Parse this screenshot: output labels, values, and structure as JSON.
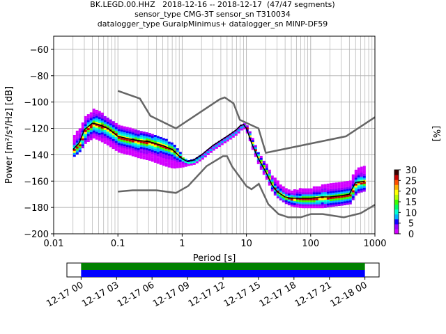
{
  "titles": {
    "line1": "BK.LEGD.00.HHZ   2018-12-16 -- 2018-12-17  (47/47 segments)",
    "line2": "sensor_type CMG-3T sensor_sn T310034",
    "line3": "datalogger_type GuralpMinimus+ datalogger_sn MINP-DF59"
  },
  "chart_data": [
    {
      "type": "heatmap",
      "xlabel": "Period [s]",
      "ylabel": "Power [m²/s⁴/Hz] [dB]",
      "xscale": "log",
      "xlim": [
        0.01,
        1000
      ],
      "ylim": [
        -200,
        -50
      ],
      "xticks": [
        "0.01",
        "0.1",
        "1",
        "10",
        "100",
        "1000"
      ],
      "yticks": [
        "−60",
        "−80",
        "−100",
        "−120",
        "−140",
        "−160",
        "−180",
        "−200"
      ],
      "ytick_values": [
        -60,
        -80,
        -100,
        -120,
        -140,
        -160,
        -180,
        -200
      ],
      "grid": true,
      "colorbar": {
        "label": "[%]",
        "ticks": [
          "0",
          "5",
          "10",
          "15",
          "20",
          "25",
          "30"
        ],
        "range": [
          0,
          30
        ],
        "colormap": [
          "#ffffff",
          "#d300ff",
          "#9a00ff",
          "#1200ff",
          "#00b4ff",
          "#00ffd0",
          "#00ff60",
          "#3cff00",
          "#b4ff00",
          "#ffff00",
          "#ffb000",
          "#ff5000",
          "#c80000",
          "#3c0000"
        ]
      },
      "mean_curve": {
        "color": "#000000",
        "x": [
          0.02,
          0.025,
          0.03,
          0.04,
          0.05,
          0.07,
          0.1,
          0.15,
          0.2,
          0.3,
          0.5,
          0.7,
          1.0,
          1.2,
          1.5,
          2,
          3,
          5,
          7,
          8,
          9,
          10,
          12,
          15,
          20,
          25,
          30,
          40,
          50,
          70,
          100,
          150,
          200,
          300,
          400,
          500,
          700
        ],
        "y": [
          -136,
          -131,
          -121,
          -116,
          -117,
          -120,
          -126,
          -128,
          -129,
          -130,
          -133,
          -136,
          -143,
          -145,
          -144,
          -140,
          -133,
          -126,
          -121,
          -118,
          -117,
          -120,
          -131,
          -142,
          -153,
          -163,
          -168,
          -172,
          -173,
          -173,
          -173,
          -172,
          -172,
          -171,
          -170,
          -161,
          -160
        ]
      },
      "nlnm": {
        "color": "#666666",
        "x": [
          0.1,
          0.17,
          0.4,
          0.8,
          1.24,
          2.4,
          4.3,
          5.0,
          6.0,
          10,
          12,
          15.6,
          21.9,
          31.6,
          45,
          70,
          101,
          154,
          328,
          600,
          1000
        ],
        "y": [
          -168,
          -167,
          -167,
          -169,
          -163.7,
          -148.6,
          -141.1,
          -141.1,
          -149,
          -163.8,
          -166.2,
          -162.1,
          -177.5,
          -185,
          -187.5,
          -187.5,
          -185,
          -185,
          -187.5,
          -184.4,
          -178
        ]
      },
      "nhnm": {
        "color": "#666666",
        "x": [
          0.1,
          0.22,
          0.32,
          0.8,
          3.8,
          4.6,
          6.3,
          7.9,
          15.4,
          20,
          354.8,
          1000
        ],
        "y": [
          -91.5,
          -97.4,
          -110.5,
          -120,
          -98,
          -96.5,
          -101,
          -113.5,
          -120,
          -138.5,
          -126,
          -111.5
        ]
      },
      "density_band": {
        "x": [
          0.02,
          0.025,
          0.03,
          0.04,
          0.05,
          0.07,
          0.1,
          0.15,
          0.2,
          0.3,
          0.5,
          0.7,
          1.0,
          1.2,
          1.5,
          2,
          3,
          5,
          7,
          8,
          9,
          10,
          12,
          15,
          20,
          25,
          30,
          40,
          50,
          70,
          100,
          150,
          200,
          300,
          400,
          500,
          700
        ],
        "upper": [
          -124,
          -118,
          -110,
          -105,
          -106,
          -112,
          -117,
          -119,
          -121,
          -122,
          -127,
          -131,
          -141,
          -143,
          -142,
          -139,
          -132,
          -125,
          -120,
          -117,
          -116,
          -117,
          -127,
          -138,
          -147,
          -156,
          -160,
          -165,
          -166,
          -165,
          -164,
          -162,
          -161,
          -160,
          -158,
          -150,
          -148
        ],
        "lower": [
          -140,
          -136,
          -130,
          -126,
          -128,
          -132,
          -137,
          -139,
          -141,
          -143,
          -147,
          -149,
          -148,
          -147,
          -146,
          -142,
          -135,
          -128,
          -123,
          -120,
          -119,
          -123,
          -135,
          -147,
          -158,
          -168,
          -172,
          -176,
          -178,
          -179,
          -179,
          -179,
          -178,
          -177,
          -176,
          -168,
          -166
        ]
      }
    },
    {
      "type": "timeline",
      "xticks": [
        "12-17 00",
        "12-17 03",
        "12-17 06",
        "12-17 09",
        "12-17 12",
        "12-17 15",
        "12-17 18",
        "12-17 21",
        "12-18 00"
      ],
      "bands": [
        {
          "color": "#008000",
          "start_hours": 0,
          "end_hours": 24
        },
        {
          "color": "#0000ff",
          "start_hours": 0,
          "end_hours": 24
        }
      ],
      "xlim_hours": [
        -1.2,
        25.2
      ]
    }
  ]
}
